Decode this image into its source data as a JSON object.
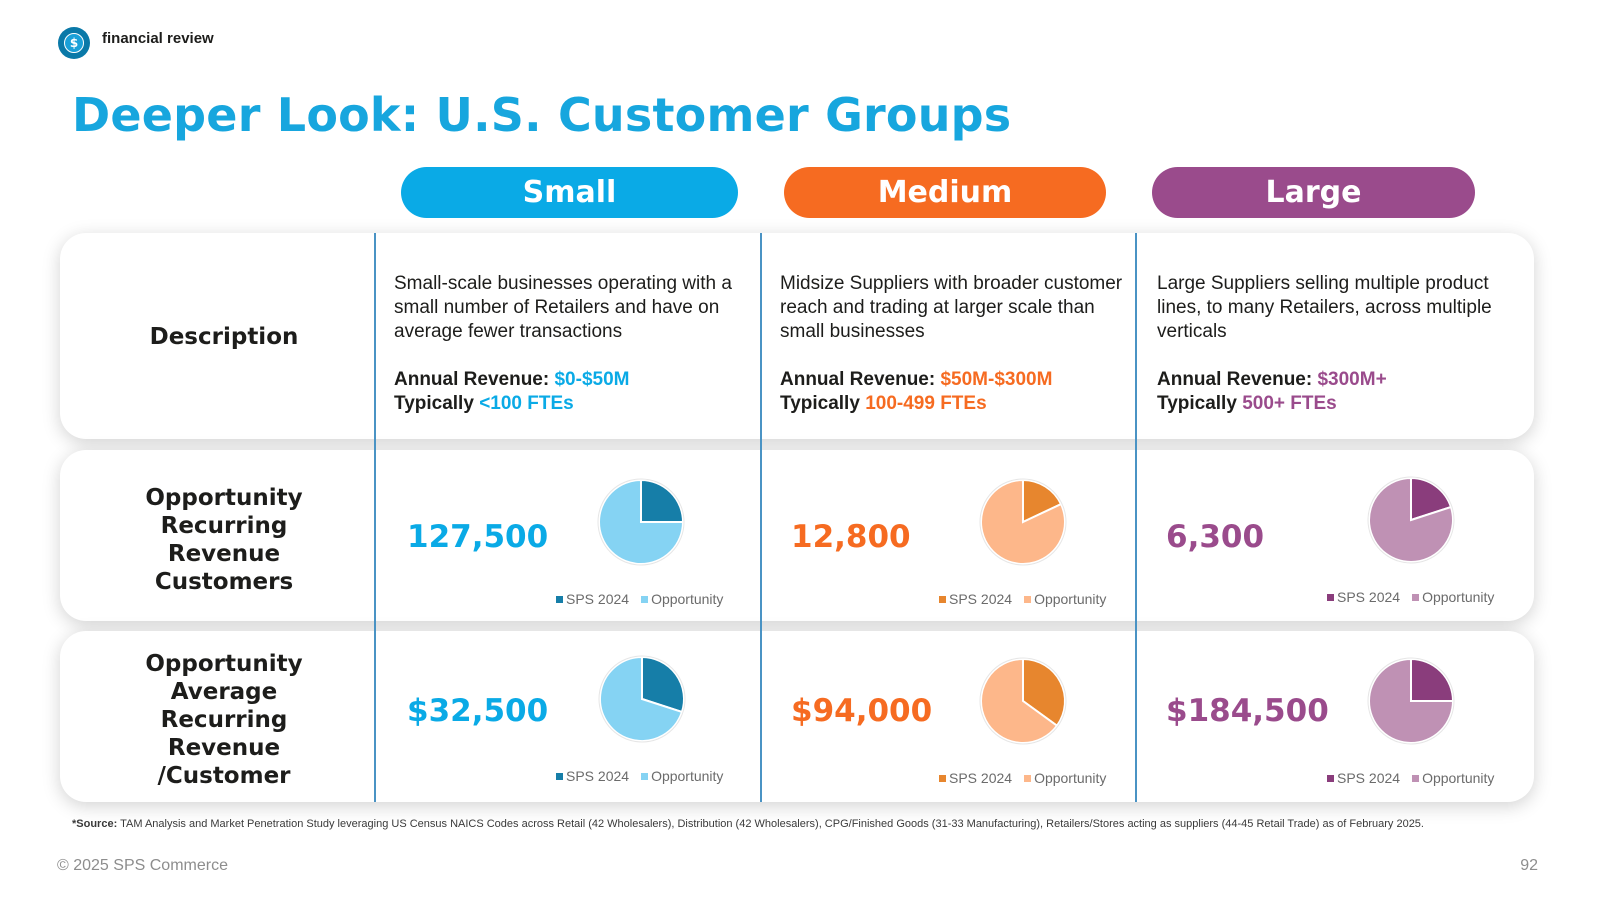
{
  "brand": {
    "name": "financial review",
    "logo_icon": "dollar-coin-icon",
    "logo_glyph": "$"
  },
  "title": "Deeper Look: U.S. Customer Groups",
  "colors": {
    "small": "#0aaae6",
    "medium": "#f66b21",
    "large": "#9a4b8c",
    "title": "#17a6de"
  },
  "segments": {
    "small": {
      "header": "Small",
      "description": "Small-scale businesses operating with a small number of Retailers and have on average fewer transactions",
      "revenue_label": "Annual Revenue: ",
      "revenue_value": "$0-$50M",
      "ftes_label": "Typically ",
      "ftes_value": "<100 FTEs",
      "customers": "127,500",
      "avg_revenue": "$32,500"
    },
    "medium": {
      "header": "Medium",
      "description": "Midsize Suppliers with broader customer reach and trading at larger scale than small businesses",
      "revenue_label": "Annual Revenue: ",
      "revenue_value": "$50M-$300M",
      "ftes_label": "Typically ",
      "ftes_value": "100-499 FTEs",
      "customers": "12,800",
      "avg_revenue": "$94,000"
    },
    "large": {
      "header": "Large",
      "description": "Large Suppliers selling multiple product lines, to many Retailers, across multiple verticals",
      "revenue_label": "Annual Revenue: ",
      "revenue_value": "$300M+",
      "ftes_label": "Typically ",
      "ftes_value": "500+ FTEs",
      "customers": "6,300",
      "avg_revenue": "$184,500"
    }
  },
  "row_labels": {
    "description": "Description",
    "customers": [
      "Opportunity",
      "Recurring",
      "Revenue",
      "Customers"
    ],
    "avg_revenue": [
      "Opportunity",
      "Average",
      "Recurring",
      "Revenue",
      "/Customer"
    ]
  },
  "legend": {
    "sps": "SPS 2024",
    "opportunity": "Opportunity"
  },
  "chart_data": [
    {
      "type": "pie",
      "id": "small-customers",
      "labels": [
        "SPS 2024",
        "Opportunity"
      ],
      "values": [
        25,
        75
      ],
      "colors": [
        "#167ea8",
        "#85d3f3"
      ]
    },
    {
      "type": "pie",
      "id": "medium-customers",
      "labels": [
        "SPS 2024",
        "Opportunity"
      ],
      "values": [
        18,
        82
      ],
      "colors": [
        "#e7862e",
        "#fdb78a"
      ]
    },
    {
      "type": "pie",
      "id": "large-customers",
      "labels": [
        "SPS 2024",
        "Opportunity"
      ],
      "values": [
        20,
        80
      ],
      "colors": [
        "#8a3d7c",
        "#bf91b4"
      ]
    },
    {
      "type": "pie",
      "id": "small-avg",
      "labels": [
        "SPS 2024",
        "Opportunity"
      ],
      "values": [
        30,
        70
      ],
      "colors": [
        "#167ea8",
        "#85d3f3"
      ]
    },
    {
      "type": "pie",
      "id": "medium-avg",
      "labels": [
        "SPS 2024",
        "Opportunity"
      ],
      "values": [
        35,
        65
      ],
      "colors": [
        "#e7862e",
        "#fdb78a"
      ]
    },
    {
      "type": "pie",
      "id": "large-avg",
      "labels": [
        "SPS 2024",
        "Opportunity"
      ],
      "values": [
        25,
        75
      ],
      "colors": [
        "#8a3d7c",
        "#bf91b4"
      ]
    }
  ],
  "source": {
    "label": "*Source:",
    "text": " TAM Analysis and Market Penetration Study leveraging US Census NAICS Codes across Retail (42 Wholesalers), Distribution (42 Wholesalers), CPG/Finished Goods (31-33 Manufacturing), Retailers/Stores acting as suppliers (44-45 Retail Trade) as of February 2025."
  },
  "footer": {
    "copyright": "© 2025 SPS Commerce",
    "page_number": "92"
  }
}
